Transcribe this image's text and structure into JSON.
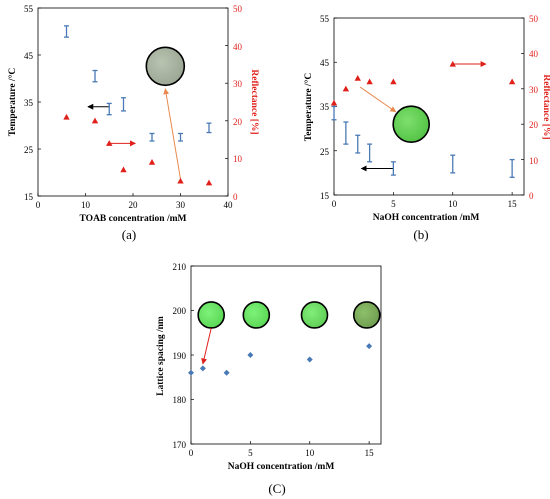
{
  "colors": {
    "blue": "#4a7ab5",
    "red": "#e0201b",
    "orange": "#e8894f",
    "black": "#000000"
  },
  "chart_data": [
    {
      "panel": "(a)",
      "type": "scatter",
      "xlabel": "TOAB concentration /mM",
      "ylabel": "Temperature /°C",
      "y2label": "Reflectance [%]",
      "xlim": [
        0,
        40
      ],
      "ylim": [
        15,
        55
      ],
      "y2lim": [
        0,
        50
      ],
      "xticks": [
        "0",
        "10",
        "20",
        "30",
        "40"
      ],
      "yticks": [
        "15",
        "25",
        "35",
        "45",
        "55"
      ],
      "y2ticks": [
        "0",
        "10",
        "20",
        "30",
        "40",
        "50"
      ],
      "series": [
        {
          "axis": "y",
          "marker": "errorbar",
          "color": "#4a7ab5",
          "x": [
            6,
            12,
            15,
            18,
            24,
            30,
            36
          ],
          "y": [
            50,
            40.5,
            33.5,
            34.5,
            27.5,
            27.5,
            29.5
          ],
          "err": [
            1.2,
            1.2,
            1.2,
            1.4,
            0.8,
            0.8,
            1.0
          ]
        },
        {
          "axis": "y2",
          "marker": "triangle",
          "color": "#e0201b",
          "x": [
            6,
            12,
            15,
            18,
            24,
            30,
            36
          ],
          "y": [
            21,
            20,
            14,
            7,
            9,
            4,
            3.5
          ]
        }
      ],
      "arrows": [
        {
          "color": "#000000",
          "from": [
            15,
            34
          ],
          "to": [
            10.5,
            34
          ]
        },
        {
          "color": "#e0201b",
          "from": [
            15,
            14
          ],
          "to": [
            20.5,
            14
          ]
        },
        {
          "color": "#e8894f",
          "from": [
            30,
            4.5
          ],
          "to": [
            26.8,
            28.5
          ],
          "axis": "y2"
        }
      ],
      "insets": [
        {
          "x": 26.8,
          "y2": 34.5,
          "fill": "#b8c4b0",
          "fill2": "#9aa693"
        }
      ]
    },
    {
      "panel": "(b)",
      "type": "scatter",
      "xlabel": "NaOH concentration /mM",
      "ylabel": "Temperature /°C",
      "y2label": "Reflectance [%]",
      "xlim": [
        0,
        16
      ],
      "ylim": [
        15,
        55
      ],
      "y2lim": [
        0,
        50
      ],
      "xticks": [
        "0",
        "5",
        "10",
        "15"
      ],
      "yticks": [
        "15",
        "25",
        "35",
        "45",
        "55"
      ],
      "y2ticks": [
        "0",
        "10",
        "20",
        "30",
        "40",
        "50"
      ],
      "series": [
        {
          "axis": "y",
          "marker": "errorbar",
          "color": "#4a7ab5",
          "x": [
            0,
            1,
            2,
            3,
            5,
            10,
            15
          ],
          "y": [
            33.5,
            29,
            26.5,
            24.5,
            21,
            22,
            21
          ],
          "err": [
            1.5,
            2.5,
            2,
            2,
            1.5,
            2,
            2
          ]
        },
        {
          "axis": "y2",
          "marker": "triangle",
          "color": "#e0201b",
          "x": [
            0,
            1,
            2,
            3,
            5,
            10,
            15
          ],
          "y": [
            26,
            30,
            33,
            32,
            32,
            37,
            32
          ]
        }
      ],
      "arrows": [
        {
          "color": "#000000",
          "from": [
            5,
            21
          ],
          "to": [
            2.3,
            21
          ]
        },
        {
          "color": "#e0201b",
          "from": [
            10,
            37
          ],
          "to": [
            12.8,
            37
          ]
        },
        {
          "color": "#e8894f",
          "from": [
            2.2,
            30.5
          ],
          "to": [
            5.2,
            23.5
          ],
          "axis": "y2"
        }
      ],
      "insets": [
        {
          "x": 6.5,
          "y2": 20,
          "fill": "#7ee06e",
          "fill2": "#52c244"
        }
      ]
    },
    {
      "panel": "(C)",
      "type": "scatter",
      "xlabel": "NaOH concentration /mM",
      "ylabel": "Lattice spacing /nm",
      "xlim": [
        0,
        16
      ],
      "ylim": [
        170,
        210
      ],
      "xticks": [
        "0",
        "5",
        "10",
        "15"
      ],
      "yticks": [
        "170",
        "180",
        "190",
        "200",
        "210"
      ],
      "series": [
        {
          "axis": "y",
          "marker": "diamond",
          "color": "#4a7ab5",
          "x": [
            0,
            1,
            3,
            5,
            10,
            15
          ],
          "y": [
            186,
            187,
            186,
            190,
            189,
            192
          ]
        }
      ],
      "arrows": [
        {
          "color": "#e0201b",
          "from": [
            1.7,
            196
          ],
          "to": [
            1,
            188
          ]
        }
      ],
      "insets": [
        {
          "x": 1.7,
          "y": 199,
          "fill": "#7ef27a",
          "fill2": "#5ad653"
        },
        {
          "x": 5.5,
          "y": 199,
          "fill": "#7ef27a",
          "fill2": "#5ad653"
        },
        {
          "x": 10.4,
          "y": 199,
          "fill": "#80ee78",
          "fill2": "#5fcc55"
        },
        {
          "x": 14.8,
          "y": 199,
          "fill": "#8cc06a",
          "fill2": "#6f9c50"
        }
      ]
    }
  ]
}
